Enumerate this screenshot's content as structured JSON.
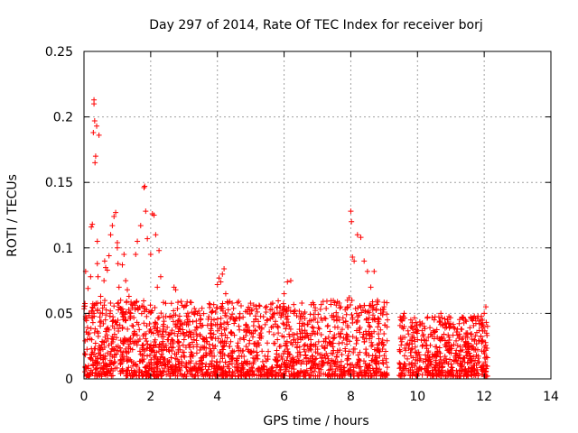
{
  "chart_data": {
    "type": "scatter",
    "title": "Day 297 of 2014, Rate Of TEC Index for receiver borj",
    "xlabel": "GPS time / hours",
    "ylabel": "ROTI / TECUs",
    "xlim": [
      0,
      14
    ],
    "ylim": [
      0,
      0.25
    ],
    "x_ticks": [
      "0",
      "2",
      "4",
      "6",
      "8",
      "10",
      "12",
      "14"
    ],
    "y_ticks": [
      "0",
      "0.05",
      "0.1",
      "0.15",
      "0.2",
      "0.25"
    ],
    "grid": true,
    "marker": "+",
    "color": "#ff0000",
    "series": [
      {
        "name": "ROTI",
        "x": [
          0.05,
          0.1,
          0.12,
          0.15,
          0.2,
          0.22,
          0.25,
          0.28,
          0.3,
          0.3,
          0.32,
          0.33,
          0.35,
          0.38,
          0.4,
          0.4,
          0.42,
          0.45,
          0.5,
          0.55,
          0.6,
          0.62,
          0.65,
          0.7,
          0.75,
          0.8,
          0.85,
          0.9,
          0.95,
          1.0,
          1.0,
          1.02,
          1.05,
          1.1,
          1.15,
          1.2,
          1.25,
          1.3,
          1.35,
          1.4,
          1.5,
          1.55,
          1.6,
          1.7,
          1.8,
          1.82,
          1.85,
          1.9,
          2.0,
          2.05,
          2.1,
          2.15,
          2.2,
          2.25,
          2.3,
          2.4,
          2.5,
          2.7,
          2.75,
          2.9,
          3.0,
          3.1,
          3.3,
          3.4,
          3.5,
          3.6,
          3.8,
          3.9,
          4.0,
          4.05,
          4.1,
          4.15,
          4.2,
          4.25,
          4.4,
          4.6,
          4.8,
          5.0,
          5.3,
          5.5,
          5.8,
          5.9,
          6.0,
          6.1,
          6.2,
          6.3,
          6.5,
          6.8,
          7.0,
          7.3,
          7.5,
          7.7,
          7.9,
          7.95,
          8.0,
          8.02,
          8.05,
          8.1,
          8.2,
          8.3,
          8.4,
          8.5,
          8.6,
          8.7,
          8.8,
          8.9,
          9.0,
          9.1,
          9.5,
          9.6,
          9.8,
          10.0,
          10.2,
          10.5,
          10.7,
          10.9,
          11.0,
          11.2,
          11.5,
          11.7,
          11.9,
          12.0,
          12.05
        ],
        "y": [
          0.082,
          0.03,
          0.069,
          0.05,
          0.078,
          0.116,
          0.118,
          0.188,
          0.21,
          0.213,
          0.197,
          0.165,
          0.17,
          0.193,
          0.105,
          0.088,
          0.078,
          0.186,
          0.063,
          0.05,
          0.075,
          0.09,
          0.085,
          0.083,
          0.094,
          0.11,
          0.117,
          0.124,
          0.127,
          0.104,
          0.1,
          0.088,
          0.07,
          0.06,
          0.087,
          0.095,
          0.075,
          0.068,
          0.063,
          0.05,
          0.035,
          0.095,
          0.105,
          0.117,
          0.146,
          0.147,
          0.128,
          0.107,
          0.095,
          0.126,
          0.125,
          0.11,
          0.07,
          0.098,
          0.078,
          0.044,
          0.03,
          0.07,
          0.068,
          0.042,
          0.03,
          0.045,
          0.03,
          0.05,
          0.045,
          0.03,
          0.035,
          0.045,
          0.072,
          0.077,
          0.074,
          0.08,
          0.084,
          0.065,
          0.035,
          0.025,
          0.03,
          0.02,
          0.035,
          0.045,
          0.03,
          0.025,
          0.065,
          0.074,
          0.075,
          0.05,
          0.03,
          0.03,
          0.035,
          0.04,
          0.045,
          0.055,
          0.06,
          0.062,
          0.128,
          0.12,
          0.093,
          0.09,
          0.11,
          0.108,
          0.09,
          0.082,
          0.07,
          0.082,
          0.06,
          0.05,
          0.055,
          0.045,
          0.045,
          0.05,
          0.045,
          0.03,
          0.04,
          0.045,
          0.05,
          0.045,
          0.04,
          0.038,
          0.035,
          0.03,
          0.045,
          0.05,
          0.055
        ],
        "band_segments": [
          {
            "x_range": [
              0.0,
              9.1
            ],
            "y_range": [
              0.002,
              0.06
            ]
          },
          {
            "x_range": [
              9.45,
              12.1
            ],
            "y_range": [
              0.002,
              0.048
            ]
          }
        ]
      }
    ]
  }
}
